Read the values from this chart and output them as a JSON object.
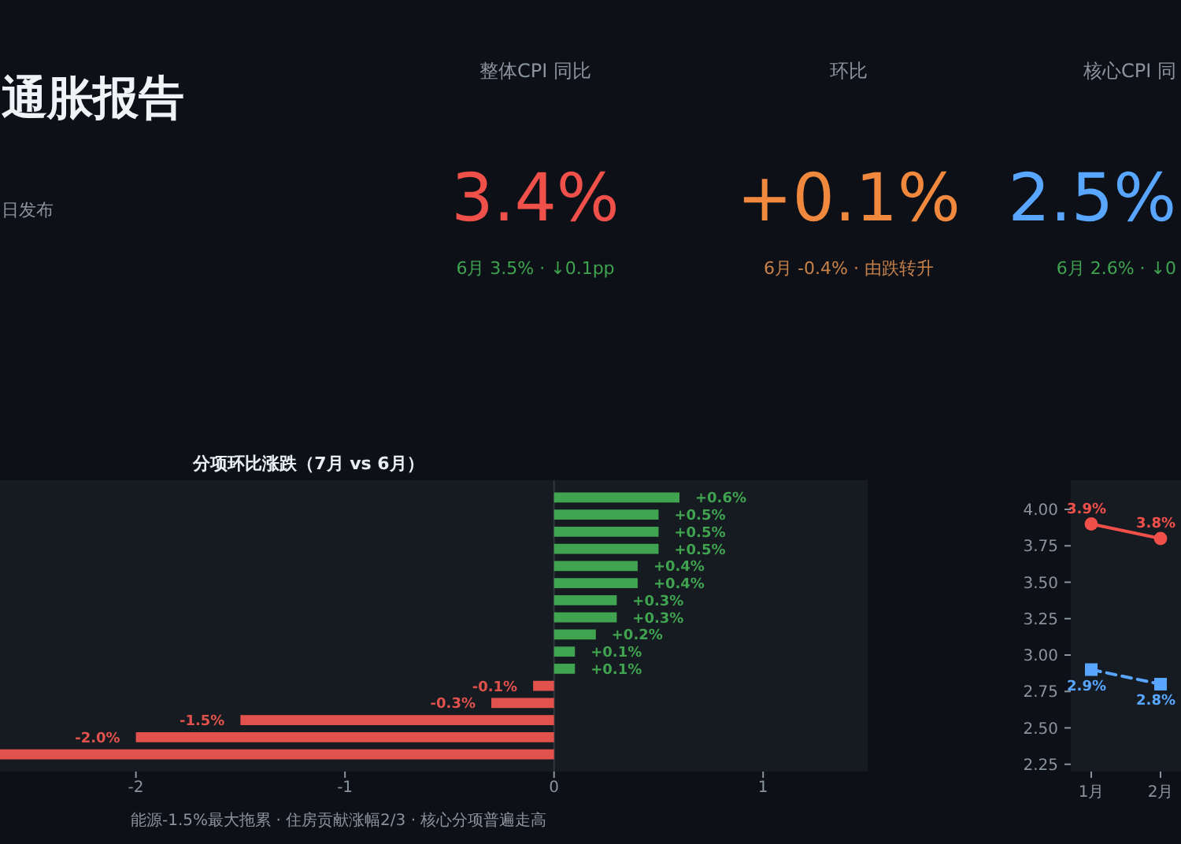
{
  "chart_data": [
    {
      "type": "other",
      "title": "通胀报告",
      "subtitle": "日发布"
    },
    {
      "type": "other",
      "title": "整体CPI 同比",
      "annotations": [
        "3.4%",
        "6月 3.5% · ↓0.1pp"
      ],
      "colors": [
        "#f0504a",
        "#3fa34f"
      ]
    },
    {
      "type": "other",
      "title": "环比",
      "annotations": [
        "+0.1%",
        "6月 -0.4% · 由跌转升"
      ],
      "colors": [
        "#f0883e",
        "#c9824a"
      ]
    },
    {
      "type": "other",
      "title": "核心CPI 同",
      "annotations": [
        "2.5%",
        "6月 2.6% · ↓0"
      ],
      "colors": [
        "#58a6ff",
        "#3fa34f"
      ]
    },
    {
      "type": "bar",
      "orientation": "horizontal",
      "title": "分项环比涨跌（7月 vs 6月）",
      "categories": [
        null,
        null,
        null,
        null,
        null,
        null,
        null,
        null,
        null,
        null,
        null,
        null,
        null,
        null,
        null,
        null
      ],
      "values": [
        0.6,
        0.5,
        0.5,
        0.5,
        0.4,
        0.4,
        0.3,
        0.3,
        0.2,
        0.1,
        0.1,
        -0.1,
        -0.3,
        -1.5,
        -2.0,
        -2.65
      ],
      "colors": [
        "#3fa34f",
        "#3fa34f",
        "#3fa34f",
        "#3fa34f",
        "#3fa34f",
        "#3fa34f",
        "#3fa34f",
        "#3fa34f",
        "#3fa34f",
        "#3fa34f",
        "#3fa34f",
        "#e0524b",
        "#e0524b",
        "#e0524b",
        "#e0524b",
        "#e0524b"
      ],
      "value_labels": [
        "+0.6%",
        "+0.5%",
        "+0.5%",
        "+0.5%",
        "+0.4%",
        "+0.4%",
        "+0.3%",
        "+0.3%",
        "+0.2%",
        "+0.1%",
        "+0.1%",
        "-0.1%",
        "-0.3%",
        "-1.5%",
        "-2.0%",
        null
      ],
      "xlim": [
        -2.65,
        1.5
      ],
      "xticks": [
        -2,
        -1,
        0,
        1
      ],
      "ref_lines": [
        {
          "axis": "x",
          "value": 0,
          "color": "#30363d"
        }
      ],
      "annotations": [
        "能源-1.5%最大拖累 · 住房贡献涨幅2/3 · 核心分项普遍走高"
      ]
    },
    {
      "type": "line",
      "categories": [
        "1月",
        "2月"
      ],
      "series": [
        {
          "color": "#f0504a",
          "values": [
            3.9,
            3.8
          ],
          "value_labels": [
            "3.9%",
            "3.8%"
          ],
          "marker": "circle",
          "line_style": "solid"
        },
        {
          "color": "#58a6ff",
          "values": [
            2.9,
            2.8
          ],
          "value_labels": [
            "2.9%",
            "2.8%"
          ],
          "marker": "square",
          "line_style": "dashed"
        }
      ],
      "ylim": [
        2.2,
        4.2
      ],
      "yticks": [
        2.25,
        {
          "value": 2.5,
          "label": "2.50"
        },
        2.75,
        {
          "value": 3.0,
          "label": "3.00"
        },
        3.25,
        {
          "value": 3.5,
          "label": "3.50"
        },
        3.75,
        {
          "value": 4.0,
          "label": "4.00"
        }
      ]
    }
  ]
}
